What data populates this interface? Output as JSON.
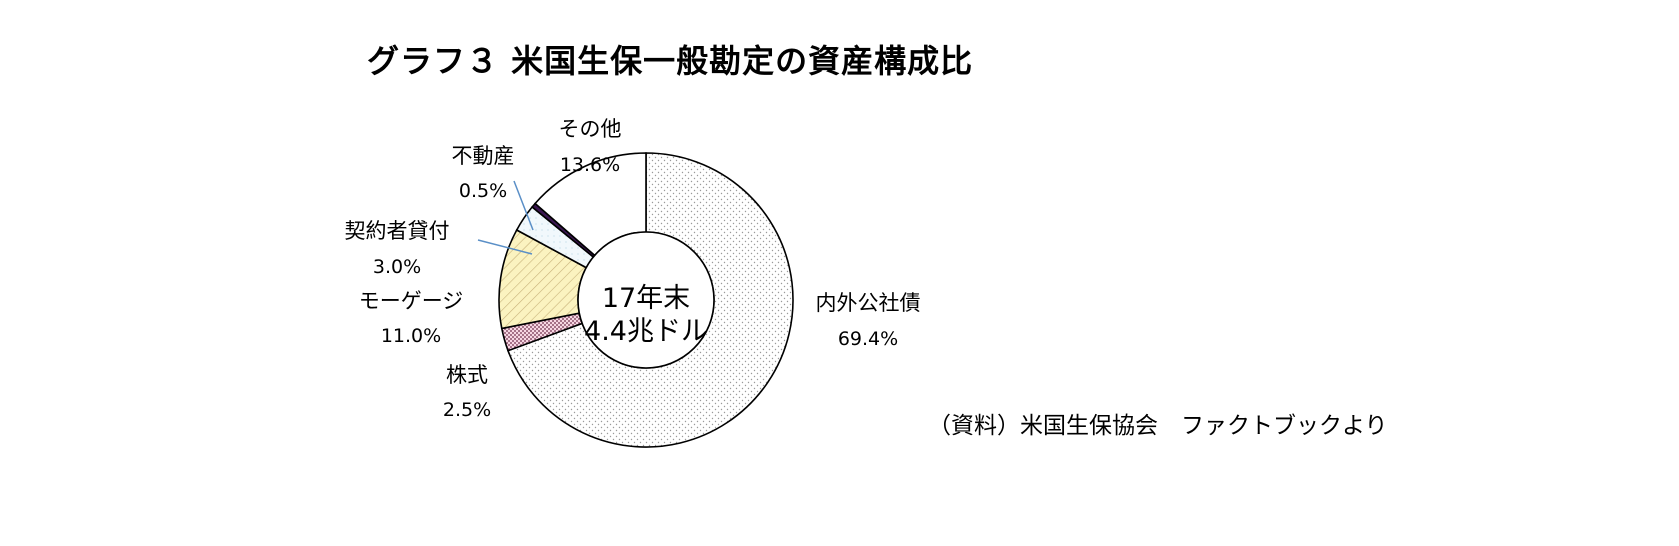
{
  "title": "グラフ３ 米国生保一般勘定の資産構成比",
  "source": "（資料）米国生保協会　ファクトブックより",
  "chart_data": {
    "type": "pie",
    "title": "グラフ３ 米国生保一般勘定の資産構成比",
    "center_label": [
      "17年末",
      "4.4兆ドル"
    ],
    "slices": [
      {
        "name": "内外公社債",
        "value": 69.4,
        "label": "69.4%",
        "fill": "bonds",
        "color": "#f7f7f7"
      },
      {
        "name": "株式",
        "value": 2.5,
        "label": "2.5%",
        "fill": "stocks",
        "color": "#f3c8d8"
      },
      {
        "name": "モーゲージ",
        "value": 11.0,
        "label": "11.0%",
        "fill": "mortgage",
        "color": "#fbf4c2"
      },
      {
        "name": "契約者貸付",
        "value": 3.0,
        "label": "3.0%",
        "fill": "loans",
        "color": "#eef6fb"
      },
      {
        "name": "不動産",
        "value": 0.5,
        "label": "0.5%",
        "fill": "realestate",
        "color": "#3a1650"
      },
      {
        "name": "その他",
        "value": 13.6,
        "label": "13.6%",
        "fill": "other",
        "color": "#ffffff"
      }
    ],
    "leader_line_color": "#5a8fc7"
  }
}
